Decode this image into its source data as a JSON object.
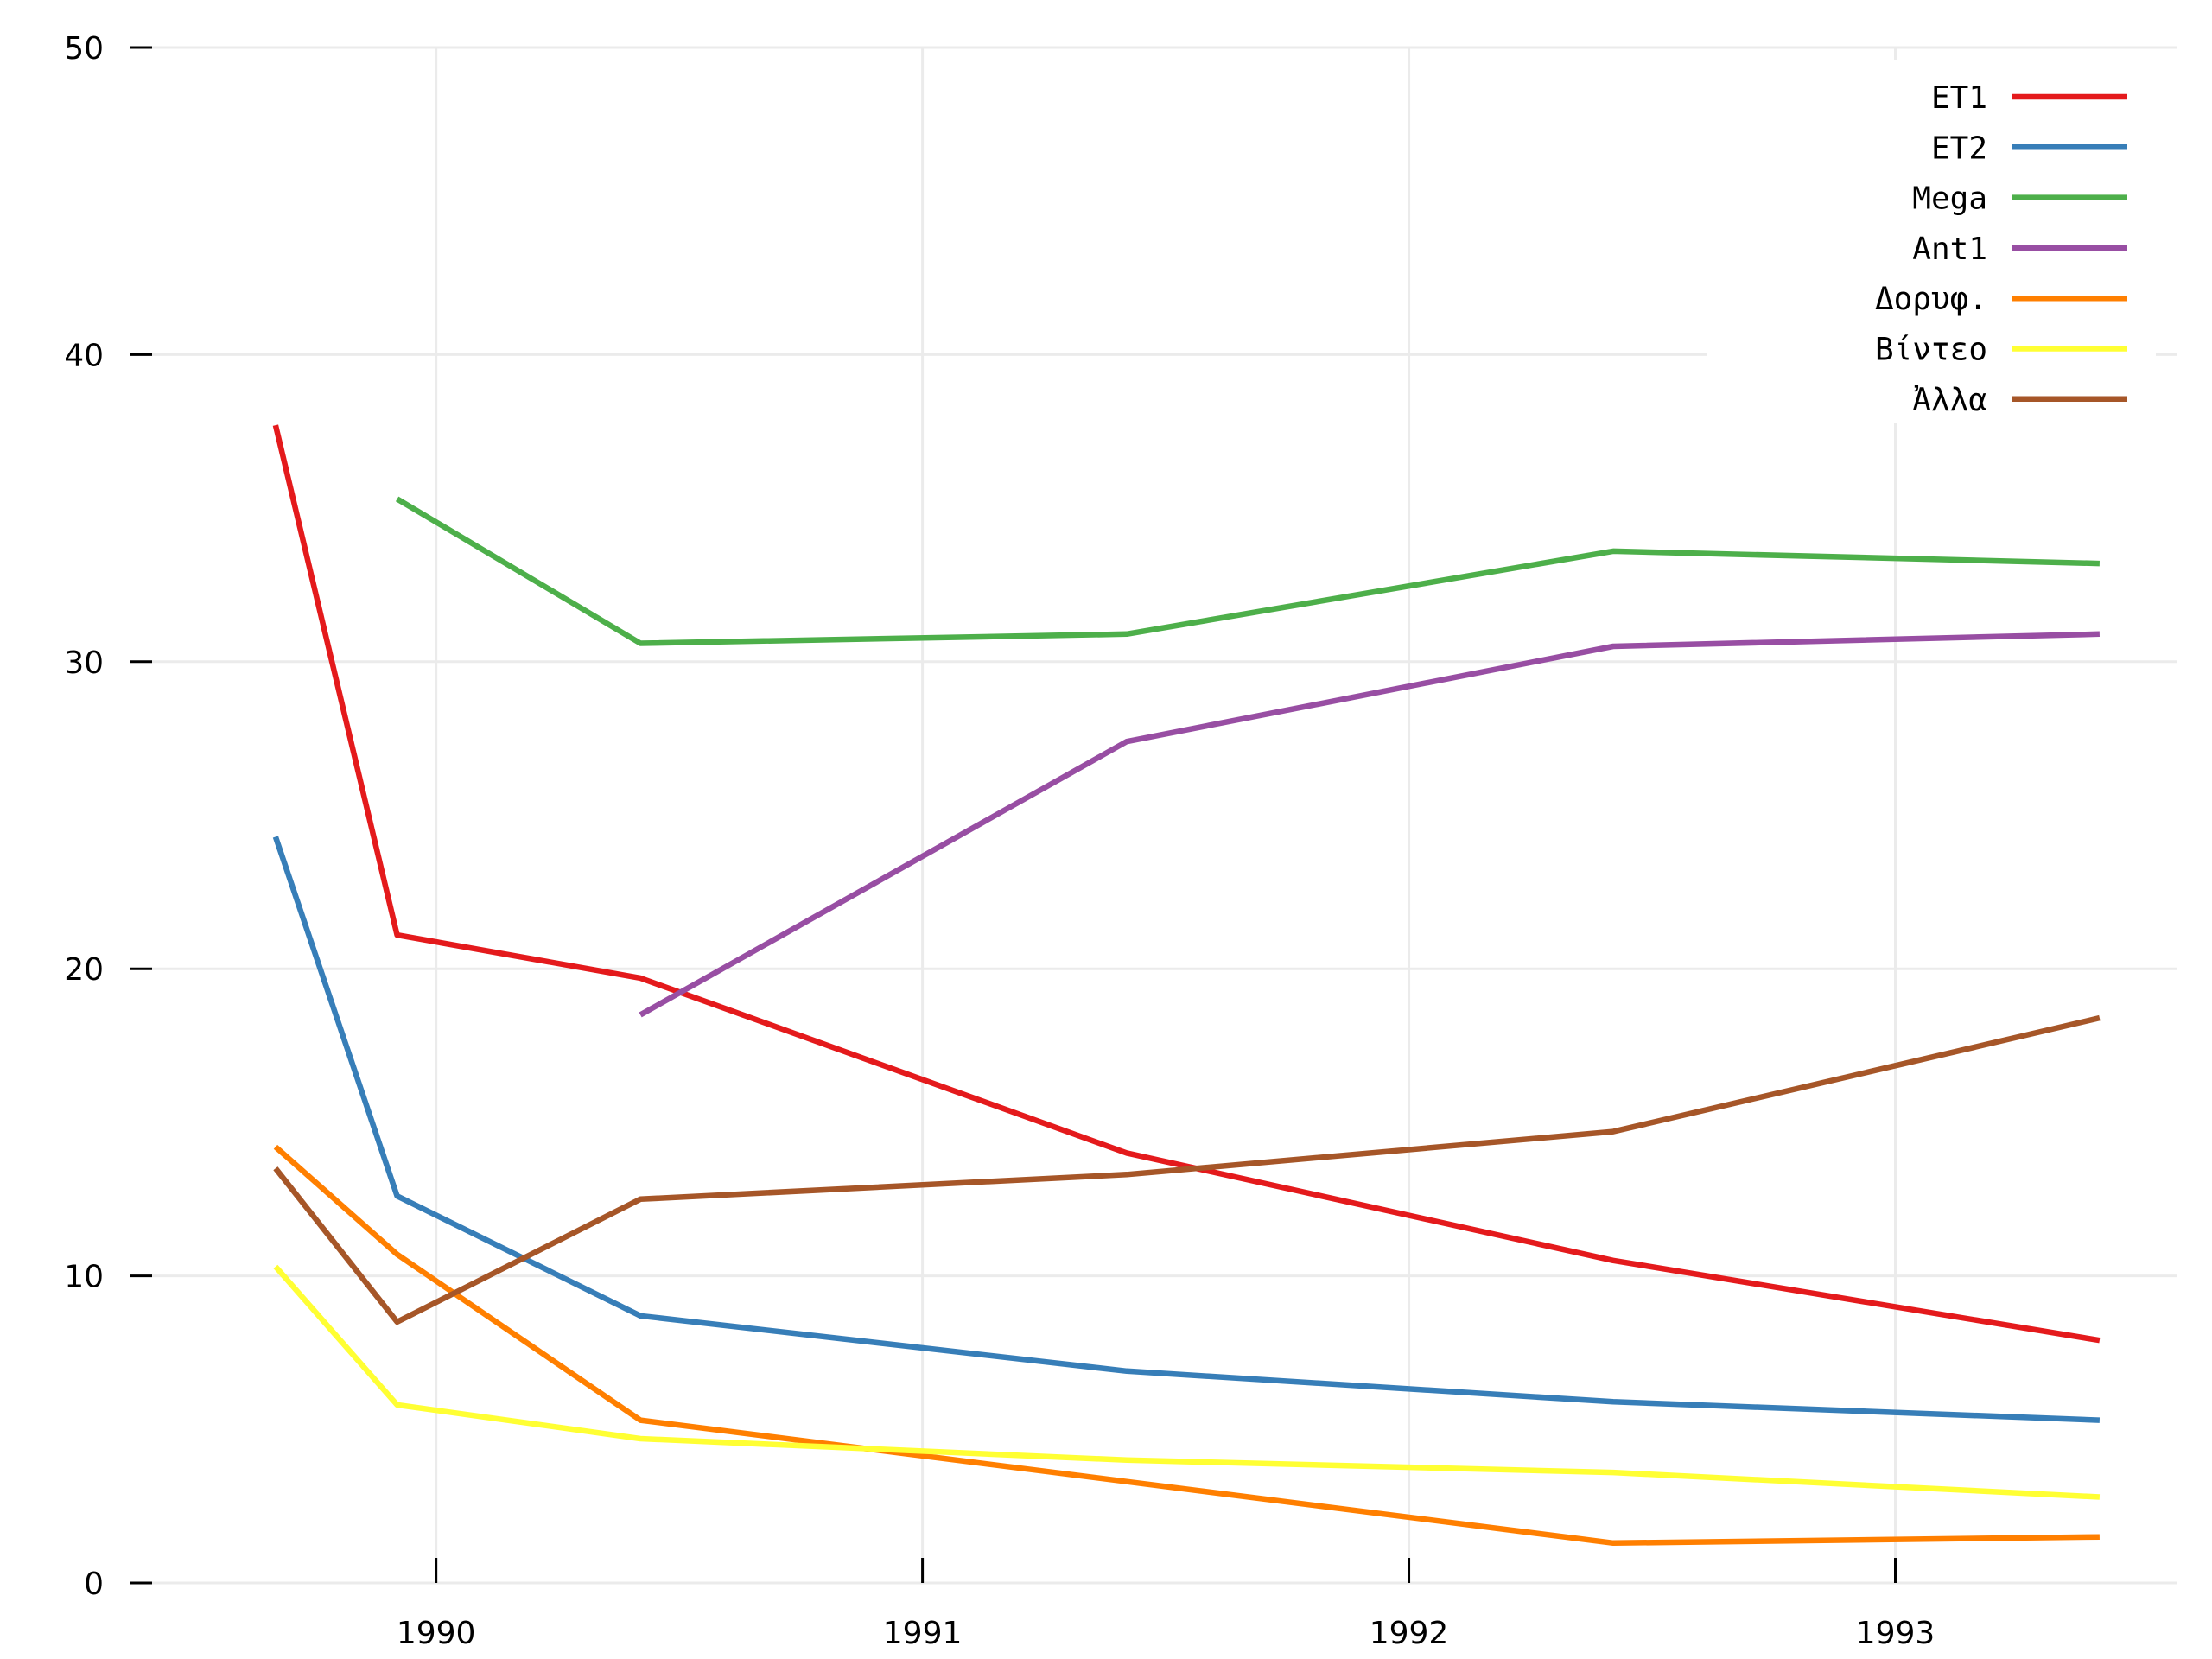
{
  "chart_data": {
    "type": "line",
    "title": "",
    "xlabel": "",
    "ylabel": "",
    "x_ticks": [
      "1990",
      "1991",
      "1992",
      "1993"
    ],
    "y_ticks": [
      "0",
      "10",
      "20",
      "30",
      "40",
      "50"
    ],
    "xlim": [
      1989.37,
      1993.58
    ],
    "ylim": [
      0,
      50
    ],
    "grid": true,
    "legend_position": "top-right",
    "series": [
      {
        "name": "ET1",
        "color": "#e41a1c",
        "points": [
          [
            1989.67,
            37.7
          ],
          [
            1989.92,
            21.1
          ],
          [
            1990.42,
            19.7
          ],
          [
            1991.42,
            14.0
          ],
          [
            1992.42,
            10.5
          ],
          [
            1993.42,
            7.9
          ]
        ]
      },
      {
        "name": "ET2",
        "color": "#377eb8",
        "points": [
          [
            1989.67,
            24.3
          ],
          [
            1989.92,
            12.6
          ],
          [
            1990.42,
            8.7
          ],
          [
            1991.42,
            6.9
          ],
          [
            1992.42,
            5.9
          ],
          [
            1993.42,
            5.3
          ]
        ]
      },
      {
        "name": "Mega",
        "color": "#4daf4a",
        "points": [
          [
            1989.92,
            35.3
          ],
          [
            1990.42,
            30.6
          ],
          [
            1991.42,
            30.9
          ],
          [
            1992.42,
            33.6
          ],
          [
            1993.42,
            33.2
          ]
        ]
      },
      {
        "name": "Ant1",
        "color": "#984ea3",
        "points": [
          [
            1990.42,
            18.5
          ],
          [
            1991.42,
            27.4
          ],
          [
            1992.42,
            30.5
          ],
          [
            1993.42,
            30.9
          ]
        ]
      },
      {
        "name": "Δορυφ.",
        "color": "#ff7f00",
        "points": [
          [
            1989.67,
            14.2
          ],
          [
            1989.92,
            10.7
          ],
          [
            1990.42,
            5.3
          ],
          [
            1991.42,
            3.3
          ],
          [
            1992.42,
            1.3
          ],
          [
            1993.42,
            1.5
          ]
        ]
      },
      {
        "name": "Βίντεο",
        "color": "#ffff33",
        "points": [
          [
            1989.67,
            10.3
          ],
          [
            1989.92,
            5.8
          ],
          [
            1990.42,
            4.7
          ],
          [
            1991.42,
            4.0
          ],
          [
            1992.42,
            3.6
          ],
          [
            1993.42,
            2.8
          ]
        ]
      },
      {
        "name": "Ἀλλα",
        "color": "#a65628",
        "points": [
          [
            1989.67,
            13.5
          ],
          [
            1989.92,
            8.5
          ],
          [
            1990.42,
            12.5
          ],
          [
            1991.42,
            13.3
          ],
          [
            1992.42,
            14.7
          ],
          [
            1993.42,
            18.4
          ]
        ]
      }
    ]
  }
}
